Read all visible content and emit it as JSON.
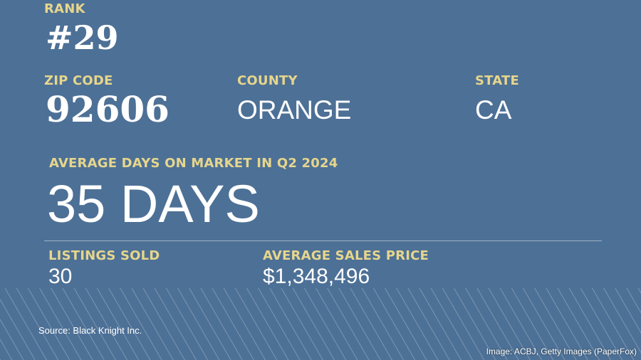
{
  "colors": {
    "background": "#4d7096",
    "label": "#e6d68c",
    "value": "#ffffff"
  },
  "rank": {
    "label": "RANK",
    "value": "#29"
  },
  "zip": {
    "label": "ZIP CODE",
    "value": "92606"
  },
  "county": {
    "label": "COUNTY",
    "value": "ORANGE"
  },
  "state": {
    "label": "STATE",
    "value": "CA"
  },
  "days_on_market": {
    "label": "AVERAGE DAYS ON MARKET IN Q2 2024",
    "value": "35 DAYS"
  },
  "listings_sold": {
    "label": "LISTINGS SOLD",
    "value": "30"
  },
  "avg_price": {
    "label": "AVERAGE SALES PRICE",
    "value": "$1,348,496"
  },
  "source": "Source: Black Knight Inc.",
  "credit": "Image: ACBJ, Getty Images (PaperFox)"
}
